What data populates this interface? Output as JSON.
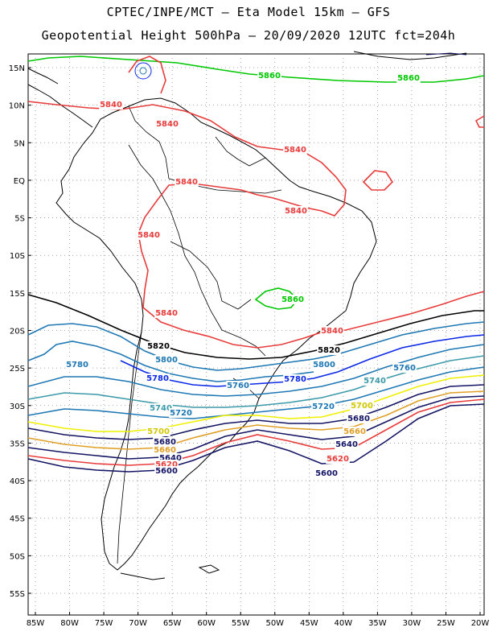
{
  "header": {
    "line1": "CPTEC/INPE/MCT –  Eta Model 15km – GFS",
    "line2": "Geopotential Height 500hPa – 20/09/2020 12UTC fct=204h"
  },
  "axes": {
    "lat_ticks": [
      "15N",
      "10N",
      "5N",
      "EQ",
      "5S",
      "10S",
      "15S",
      "20S",
      "25S",
      "30S",
      "35S",
      "40S",
      "45S",
      "50S",
      "55S"
    ],
    "lon_ticks": [
      "85W",
      "80W",
      "75W",
      "70W",
      "65W",
      "60W",
      "55W",
      "50W",
      "45W",
      "40W",
      "35W",
      "30W",
      "25W",
      "20W"
    ]
  },
  "contour_labels": [
    {
      "text": "5860",
      "color": "#00c800"
    },
    {
      "text": "5860",
      "color": "#00c800"
    },
    {
      "text": "5860",
      "color": "#00c800"
    },
    {
      "text": "5840",
      "color": "#e83c3c"
    },
    {
      "text": "5840",
      "color": "#e83c3c"
    },
    {
      "text": "5840",
      "color": "#e83c3c"
    },
    {
      "text": "5840",
      "color": "#e83c3c"
    },
    {
      "text": "5840",
      "color": "#e83c3c"
    },
    {
      "text": "5840",
      "color": "#e83c3c"
    },
    {
      "text": "5840",
      "color": "#e83c3c"
    },
    {
      "text": "5840",
      "color": "#e83c3c"
    },
    {
      "text": "5820",
      "color": "#000000"
    },
    {
      "text": "5820",
      "color": "#000000"
    },
    {
      "text": "5800",
      "color": "#1e78b4"
    },
    {
      "text": "5800",
      "color": "#1e78b4"
    },
    {
      "text": "5780",
      "color": "#1e78b4"
    },
    {
      "text": "5780",
      "color": "#0a28e6"
    },
    {
      "text": "5780",
      "color": "#0a28e6"
    },
    {
      "text": "5760",
      "color": "#1e78b4"
    },
    {
      "text": "5760",
      "color": "#1e78b4"
    },
    {
      "text": "5740",
      "color": "#3c9aaa"
    },
    {
      "text": "5740",
      "color": "#3c9aaa"
    },
    {
      "text": "5720",
      "color": "#1e78b4"
    },
    {
      "text": "5720",
      "color": "#1e78b4"
    },
    {
      "text": "5700",
      "color": "#d2c800"
    },
    {
      "text": "5700",
      "color": "#d2c800"
    },
    {
      "text": "5680",
      "color": "#141464"
    },
    {
      "text": "5680",
      "color": "#141464"
    },
    {
      "text": "5660",
      "color": "#e0a028"
    },
    {
      "text": "5660",
      "color": "#e0a028"
    },
    {
      "text": "5640",
      "color": "#141464"
    },
    {
      "text": "5640",
      "color": "#141464"
    },
    {
      "text": "5620",
      "color": "#e83c3c"
    },
    {
      "text": "5620",
      "color": "#e83c3c"
    },
    {
      "text": "5600",
      "color": "#141464"
    },
    {
      "text": "5600",
      "color": "#141464"
    }
  ],
  "colors": {
    "green": "#00c800",
    "red": "#e83c3c",
    "black": "#000000",
    "steel_blue": "#1e78b4",
    "blue": "#0a28e6",
    "teal": "#3c9aaa",
    "yellow": "#f0f000",
    "orange": "#e0a028",
    "navy": "#141464",
    "grid": "#8c8c8c"
  }
}
